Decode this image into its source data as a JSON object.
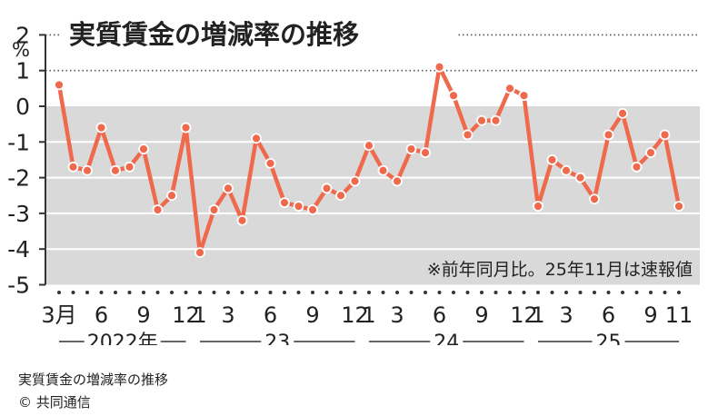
{
  "chart_data": {
    "type": "line",
    "title": "実質賃金の増減率の推移",
    "unit": "%",
    "ylim": [
      -5,
      2
    ],
    "yticks": [
      "2",
      "1",
      "0",
      "-1",
      "-2",
      "-3",
      "-4",
      "-5"
    ],
    "xlim": [
      "2022-03",
      "2025-11"
    ],
    "note": "※前年同月比。25年11月は速報値",
    "line_color": "#ef6a4d",
    "negative_band_color": "#d9d9d9",
    "xticks": [
      {
        "label": "3月",
        "month": "2022-03"
      },
      {
        "label": "6",
        "month": "2022-06"
      },
      {
        "label": "9",
        "month": "2022-09"
      },
      {
        "label": "12",
        "month": "2022-12"
      },
      {
        "label": "1",
        "month": "2023-01"
      },
      {
        "label": "3",
        "month": "2023-03"
      },
      {
        "label": "6",
        "month": "2023-06"
      },
      {
        "label": "9",
        "month": "2023-09"
      },
      {
        "label": "12",
        "month": "2023-12"
      },
      {
        "label": "1",
        "month": "2024-01"
      },
      {
        "label": "3",
        "month": "2024-03"
      },
      {
        "label": "6",
        "month": "2024-06"
      },
      {
        "label": "9",
        "month": "2024-09"
      },
      {
        "label": "12",
        "month": "2024-12"
      },
      {
        "label": "1",
        "month": "2025-01"
      },
      {
        "label": "3",
        "month": "2025-03"
      },
      {
        "label": "6",
        "month": "2025-06"
      },
      {
        "label": "9",
        "month": "2025-09"
      },
      {
        "label": "11",
        "month": "2025-11"
      }
    ],
    "years": [
      {
        "label": "2022年",
        "from": "2022-03",
        "to": "2022-12"
      },
      {
        "label": "23",
        "from": "2023-01",
        "to": "2023-12"
      },
      {
        "label": "24",
        "from": "2024-01",
        "to": "2024-12"
      },
      {
        "label": "25",
        "from": "2025-01",
        "to": "2025-11"
      }
    ],
    "series": [
      {
        "points": [
          {
            "x": "2022-03",
            "y": 0.6
          },
          {
            "x": "2022-04",
            "y": -1.7
          },
          {
            "x": "2022-05",
            "y": -1.8
          },
          {
            "x": "2022-06",
            "y": -0.6
          },
          {
            "x": "2022-07",
            "y": -1.8
          },
          {
            "x": "2022-08",
            "y": -1.7
          },
          {
            "x": "2022-09",
            "y": -1.2
          },
          {
            "x": "2022-10",
            "y": -2.9
          },
          {
            "x": "2022-11",
            "y": -2.5
          },
          {
            "x": "2022-12",
            "y": -0.6
          },
          {
            "x": "2023-01",
            "y": -4.1
          },
          {
            "x": "2023-02",
            "y": -2.9
          },
          {
            "x": "2023-03",
            "y": -2.3
          },
          {
            "x": "2023-04",
            "y": -3.2
          },
          {
            "x": "2023-05",
            "y": -0.9
          },
          {
            "x": "2023-06",
            "y": -1.6
          },
          {
            "x": "2023-07",
            "y": -2.7
          },
          {
            "x": "2023-08",
            "y": -2.8
          },
          {
            "x": "2023-09",
            "y": -2.9
          },
          {
            "x": "2023-10",
            "y": -2.3
          },
          {
            "x": "2023-11",
            "y": -2.5
          },
          {
            "x": "2023-12",
            "y": -2.1
          },
          {
            "x": "2024-01",
            "y": -1.1
          },
          {
            "x": "2024-02",
            "y": -1.8
          },
          {
            "x": "2024-03",
            "y": -2.1
          },
          {
            "x": "2024-04",
            "y": -1.2
          },
          {
            "x": "2024-05",
            "y": -1.3
          },
          {
            "x": "2024-06",
            "y": 1.1
          },
          {
            "x": "2024-07",
            "y": 0.3
          },
          {
            "x": "2024-08",
            "y": -0.8
          },
          {
            "x": "2024-09",
            "y": -0.4
          },
          {
            "x": "2024-10",
            "y": -0.4
          },
          {
            "x": "2024-11",
            "y": 0.5
          },
          {
            "x": "2024-12",
            "y": 0.3
          },
          {
            "x": "2025-01",
            "y": -2.8
          },
          {
            "x": "2025-02",
            "y": -1.5
          },
          {
            "x": "2025-03",
            "y": -1.8
          },
          {
            "x": "2025-04",
            "y": -2.0
          },
          {
            "x": "2025-05",
            "y": -2.6
          },
          {
            "x": "2025-06",
            "y": -0.8
          },
          {
            "x": "2025-07",
            "y": -0.2
          },
          {
            "x": "2025-08",
            "y": -1.7
          },
          {
            "x": "2025-09",
            "y": -1.3
          },
          {
            "x": "2025-10",
            "y": -0.8
          },
          {
            "x": "2025-11",
            "y": -2.8
          }
        ]
      }
    ]
  },
  "caption": {
    "title": "実質賃金の増減率の推移",
    "credit": "© 共同通信"
  }
}
